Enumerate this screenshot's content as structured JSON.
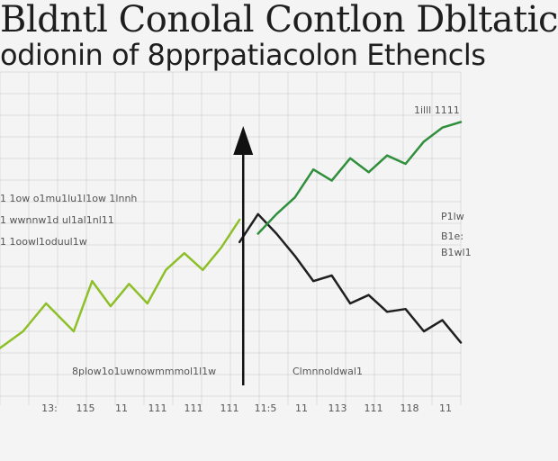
{
  "chart_data": {
    "type": "line",
    "title": "Bldntl Conolal Contlon Dbltatic",
    "subtitle": "odionin of 8pprpatiacolon Ethencls",
    "grid": true,
    "legend": "none",
    "xlim": [
      0,
      100
    ],
    "ylim": [
      0,
      100
    ],
    "x_tick_labels": [
      "13:",
      "115",
      "11",
      "111",
      "111",
      "111",
      "11:5",
      "11",
      "113",
      "111",
      "118",
      "11"
    ],
    "annotations": [
      {
        "id": "left-1",
        "text": "1 1ow o1mu1lu1l1ow 1lnnh"
      },
      {
        "id": "left-2",
        "text": "1 wwnnw1d ul1al1nl11"
      },
      {
        "id": "left-3",
        "text": "1 1oowl1oduul1w"
      },
      {
        "id": "right-1",
        "text": "1illl 1111"
      },
      {
        "id": "right-2",
        "text": "P1lw"
      },
      {
        "id": "right-3",
        "text": "B1e:"
      },
      {
        "id": "right-4",
        "text": "B1wl1"
      },
      {
        "id": "bottom-left",
        "text": "8plow1o1uwnowmmmol1l1w"
      },
      {
        "id": "bottom-right",
        "text": "Clmnnoldwal1"
      }
    ],
    "series": [
      {
        "color": "#8dbf28",
        "x": [
          0,
          5,
          10,
          16,
          20,
          24,
          28,
          32,
          36,
          40,
          44,
          48,
          52
        ],
        "y": [
          14,
          20,
          30,
          20,
          38,
          29,
          37,
          30,
          42,
          48,
          42,
          50,
          60
        ]
      },
      {
        "color": "#1f1f1f",
        "x": [
          52,
          56,
          60,
          64,
          68,
          72,
          76,
          80,
          84,
          88,
          92,
          96,
          100
        ],
        "y": [
          52,
          62,
          55,
          47,
          38,
          40,
          30,
          33,
          27,
          28,
          20,
          24,
          16
        ]
      },
      {
        "color": "#2f8f3c",
        "x": [
          56,
          60,
          64,
          68,
          72,
          76,
          80,
          84,
          88,
          92,
          96,
          100
        ],
        "y": [
          55,
          62,
          68,
          78,
          74,
          82,
          77,
          83,
          80,
          88,
          93,
          95
        ]
      }
    ],
    "vertical_marker_x": 52
  }
}
